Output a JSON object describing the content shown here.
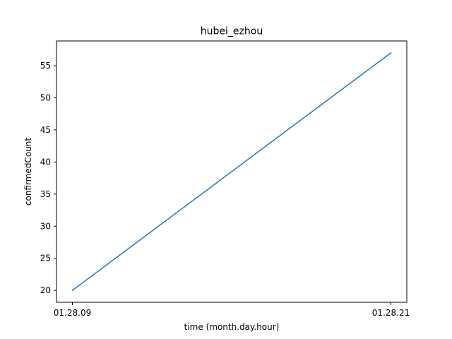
{
  "chart_data": {
    "type": "line",
    "title": "hubei_ezhou",
    "xlabel": "time (month.day.hour)",
    "ylabel": "confirmedCount",
    "x": [
      "01.28.09",
      "01.28.21"
    ],
    "series": [
      {
        "values": [
          20,
          57
        ],
        "color": "#1f77b4"
      }
    ],
    "y_ticks": [
      20,
      25,
      30,
      35,
      40,
      45,
      50,
      55
    ],
    "ylim": [
      18.15,
      58.85
    ],
    "grid": false,
    "legend": "none"
  }
}
